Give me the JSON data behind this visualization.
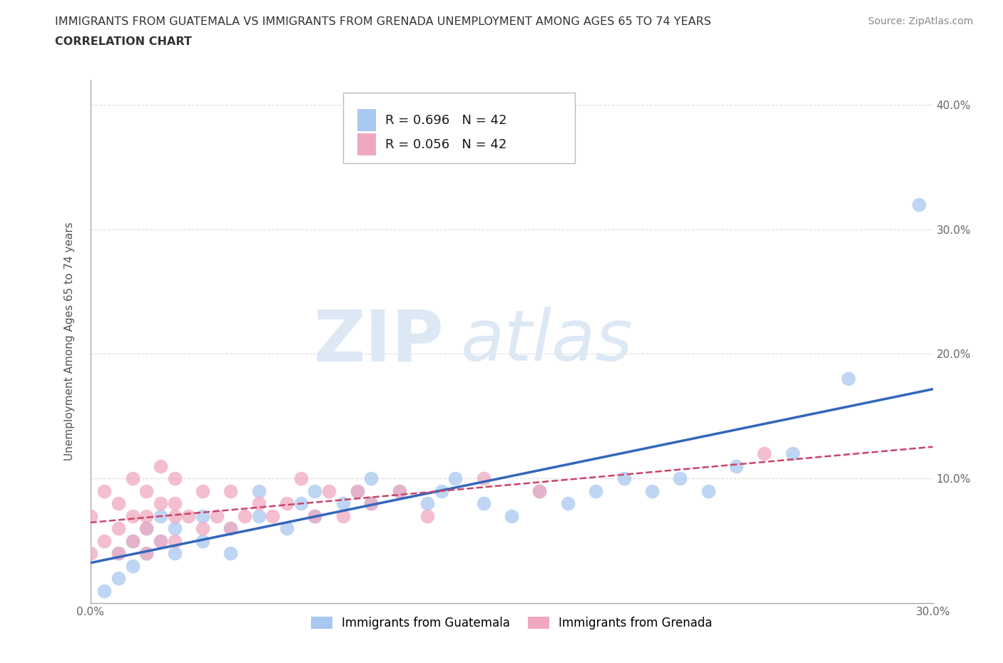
{
  "title_line1": "IMMIGRANTS FROM GUATEMALA VS IMMIGRANTS FROM GRENADA UNEMPLOYMENT AMONG AGES 65 TO 74 YEARS",
  "title_line2": "CORRELATION CHART",
  "source": "Source: ZipAtlas.com",
  "ylabel": "Unemployment Among Ages 65 to 74 years",
  "xlim": [
    0.0,
    0.3
  ],
  "ylim": [
    0.0,
    0.42
  ],
  "xticks": [
    0.0,
    0.05,
    0.1,
    0.15,
    0.2,
    0.25,
    0.3
  ],
  "xtick_labels": [
    "0.0%",
    "",
    "",
    "",
    "",
    "",
    "30.0%"
  ],
  "yticks": [
    0.0,
    0.1,
    0.2,
    0.3,
    0.4
  ],
  "ytick_labels": [
    "",
    "10.0%",
    "20.0%",
    "30.0%",
    "40.0%"
  ],
  "R_guatemala": 0.696,
  "N_guatemala": 42,
  "R_grenada": 0.056,
  "N_grenada": 42,
  "color_guatemala": "#a8c8f0",
  "color_grenada": "#f0a8c0",
  "line_color_guatemala": "#3366bb",
  "line_color_grenada": "#cc4466",
  "watermark_zip": "ZIP",
  "watermark_atlas": "atlas",
  "watermark_color": "#dde8f5",
  "background_color": "#ffffff",
  "title_color": "#333333",
  "guatemala_x": [
    0.005,
    0.01,
    0.01,
    0.015,
    0.015,
    0.02,
    0.02,
    0.025,
    0.025,
    0.03,
    0.03,
    0.04,
    0.04,
    0.05,
    0.05,
    0.06,
    0.06,
    0.07,
    0.075,
    0.08,
    0.08,
    0.09,
    0.095,
    0.1,
    0.1,
    0.11,
    0.12,
    0.125,
    0.13,
    0.14,
    0.15,
    0.16,
    0.17,
    0.18,
    0.19,
    0.2,
    0.21,
    0.22,
    0.23,
    0.25,
    0.27,
    0.295
  ],
  "guatemala_y": [
    0.01,
    0.02,
    0.04,
    0.03,
    0.05,
    0.04,
    0.06,
    0.05,
    0.07,
    0.04,
    0.06,
    0.05,
    0.07,
    0.06,
    0.04,
    0.07,
    0.09,
    0.06,
    0.08,
    0.07,
    0.09,
    0.08,
    0.09,
    0.08,
    0.1,
    0.09,
    0.08,
    0.09,
    0.1,
    0.08,
    0.07,
    0.09,
    0.08,
    0.09,
    0.1,
    0.09,
    0.1,
    0.09,
    0.11,
    0.12,
    0.18,
    0.32
  ],
  "grenada_x": [
    0.0,
    0.0,
    0.005,
    0.005,
    0.01,
    0.01,
    0.01,
    0.015,
    0.015,
    0.015,
    0.02,
    0.02,
    0.02,
    0.02,
    0.025,
    0.025,
    0.025,
    0.03,
    0.03,
    0.03,
    0.03,
    0.035,
    0.04,
    0.04,
    0.045,
    0.05,
    0.05,
    0.055,
    0.06,
    0.065,
    0.07,
    0.075,
    0.08,
    0.085,
    0.09,
    0.095,
    0.1,
    0.11,
    0.12,
    0.14,
    0.16,
    0.24
  ],
  "grenada_y": [
    0.04,
    0.07,
    0.05,
    0.09,
    0.04,
    0.06,
    0.08,
    0.05,
    0.07,
    0.1,
    0.04,
    0.06,
    0.07,
    0.09,
    0.05,
    0.08,
    0.11,
    0.05,
    0.07,
    0.08,
    0.1,
    0.07,
    0.06,
    0.09,
    0.07,
    0.06,
    0.09,
    0.07,
    0.08,
    0.07,
    0.08,
    0.1,
    0.07,
    0.09,
    0.07,
    0.09,
    0.08,
    0.09,
    0.07,
    0.1,
    0.09,
    0.12
  ]
}
